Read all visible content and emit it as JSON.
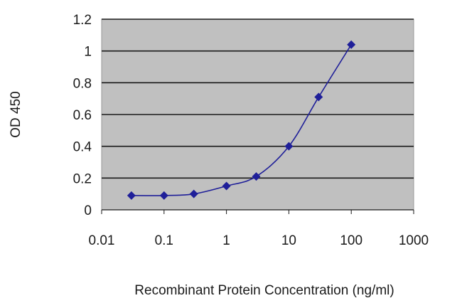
{
  "chart_data": {
    "type": "line",
    "xlabel": "Recombinant Protein Concentration (ng/ml)",
    "ylabel": "OD 450",
    "x_scale": "log",
    "xlim": [
      0.01,
      1000
    ],
    "ylim": [
      0,
      1.2
    ],
    "x_ticks": [
      "0.01",
      "0.1",
      "1",
      "10",
      "100",
      "1000"
    ],
    "y_ticks": [
      "0",
      "0.2",
      "0.4",
      "0.6",
      "0.8",
      "1",
      "1.2"
    ],
    "grid": "horizontal",
    "plot_background": "#c0c0c0",
    "series": [
      {
        "color": "#1f1f99",
        "marker": "diamond",
        "x": [
          0.03,
          0.1,
          0.3,
          1,
          3,
          10,
          30,
          100
        ],
        "y": [
          0.09,
          0.09,
          0.1,
          0.15,
          0.21,
          0.4,
          0.71,
          1.04
        ]
      }
    ]
  }
}
